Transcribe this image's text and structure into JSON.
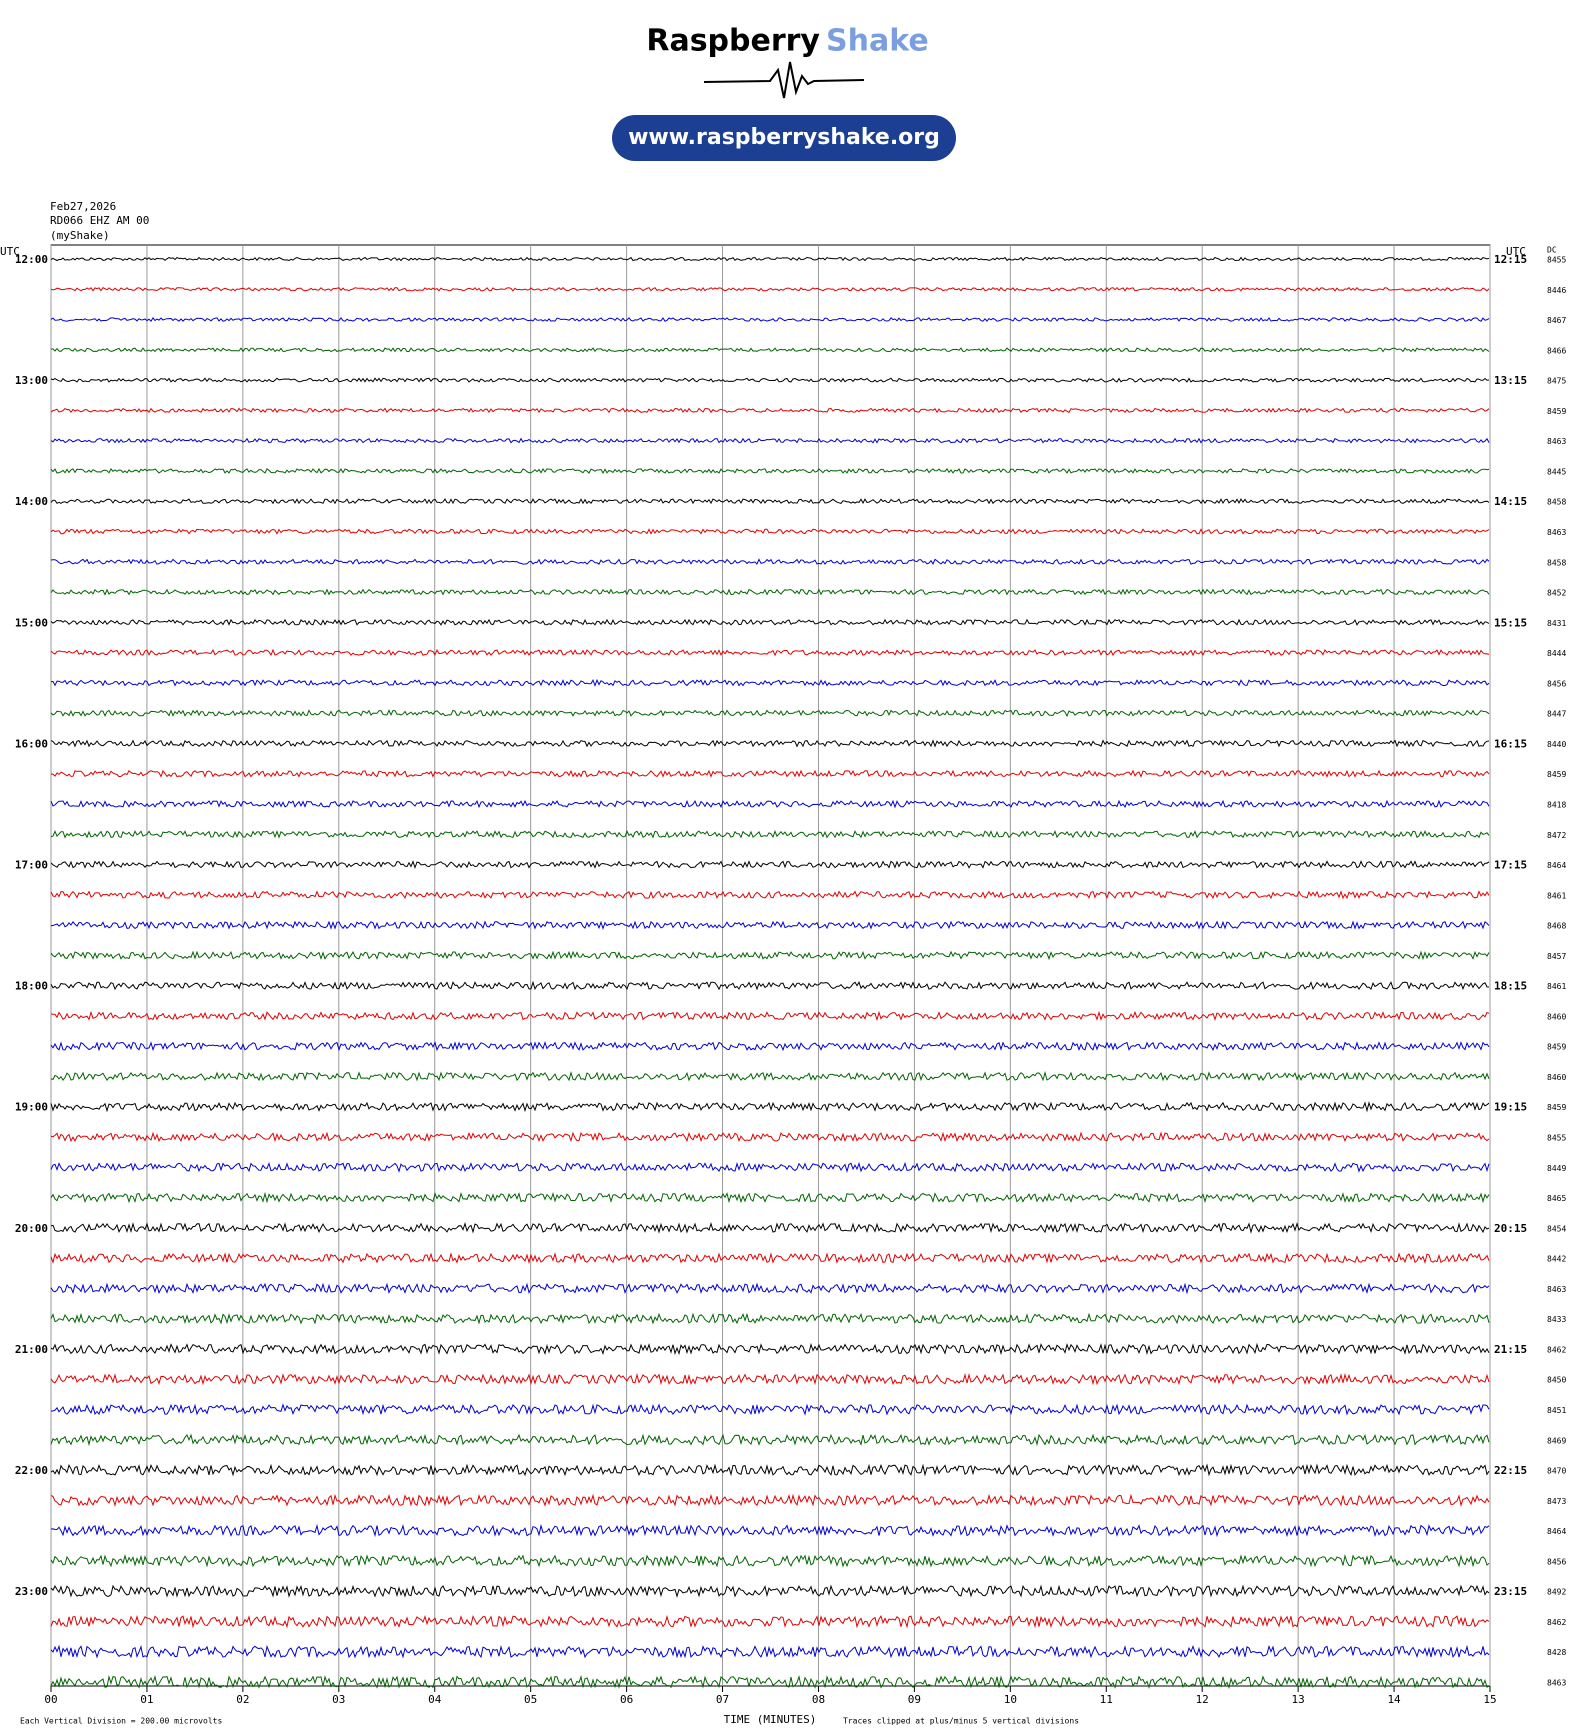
{
  "header": {
    "brand_first": "Raspberry",
    "brand_second": "Shake",
    "url": "www.raspberryshake.org"
  },
  "chart_data": {
    "type": "helicorder",
    "date": "Feb27,2026",
    "station": "RD066 EHZ AM 00",
    "source": "(myShake)",
    "left_axis_title": "UTC",
    "right_axis_title": "UTC",
    "dc_title": "DC",
    "left_hour_labels": [
      "12:00",
      "13:00",
      "14:00",
      "15:00",
      "16:00",
      "17:00",
      "18:00",
      "19:00",
      "20:00",
      "21:00",
      "22:00",
      "23:00"
    ],
    "right_hour_labels": [
      "12:15",
      "13:15",
      "14:15",
      "15:15",
      "16:15",
      "17:15",
      "18:15",
      "19:15",
      "20:15",
      "21:15",
      "22:15",
      "23:15"
    ],
    "dc_offsets": [
      8455,
      8446,
      8467,
      8466,
      8475,
      8459,
      8463,
      8445,
      8458,
      8463,
      8458,
      8452,
      8431,
      8444,
      8456,
      8447,
      8440,
      8459,
      8418,
      8472,
      8464,
      8461,
      8468,
      8457,
      8461,
      8460,
      8459,
      8460,
      8459,
      8455,
      8449,
      8465,
      8454,
      8442,
      8463,
      8433,
      8462,
      8450,
      8451,
      8469,
      8470,
      8473,
      8464,
      8456,
      8492,
      8462,
      8428,
      8463
    ],
    "trace_colors": [
      "#000000",
      "#e00000",
      "#0000d0",
      "#006400"
    ],
    "xlim": [
      0,
      15
    ],
    "xticks": [
      {
        "value": 0,
        "label": "00"
      },
      {
        "value": 1,
        "label": "01"
      },
      {
        "value": 2,
        "label": "02"
      },
      {
        "value": 3,
        "label": "03"
      },
      {
        "value": 4,
        "label": "04"
      },
      {
        "value": 5,
        "label": "05"
      },
      {
        "value": 6,
        "label": "06"
      },
      {
        "value": 7,
        "label": "07"
      },
      {
        "value": 8,
        "label": "08"
      },
      {
        "value": 9,
        "label": "09"
      },
      {
        "value": 10,
        "label": "10"
      },
      {
        "value": 11,
        "label": "11"
      },
      {
        "value": 12,
        "label": "12"
      },
      {
        "value": 13,
        "label": "13"
      },
      {
        "value": 14,
        "label": "14"
      },
      {
        "value": 15,
        "label": "15"
      }
    ],
    "xlabel": "TIME (MINUTES)",
    "scale_note": "Each Vertical Division =  200.00 microvolts",
    "clip_note": "Traces clipped at plus/minus 5 vertical divisions"
  }
}
